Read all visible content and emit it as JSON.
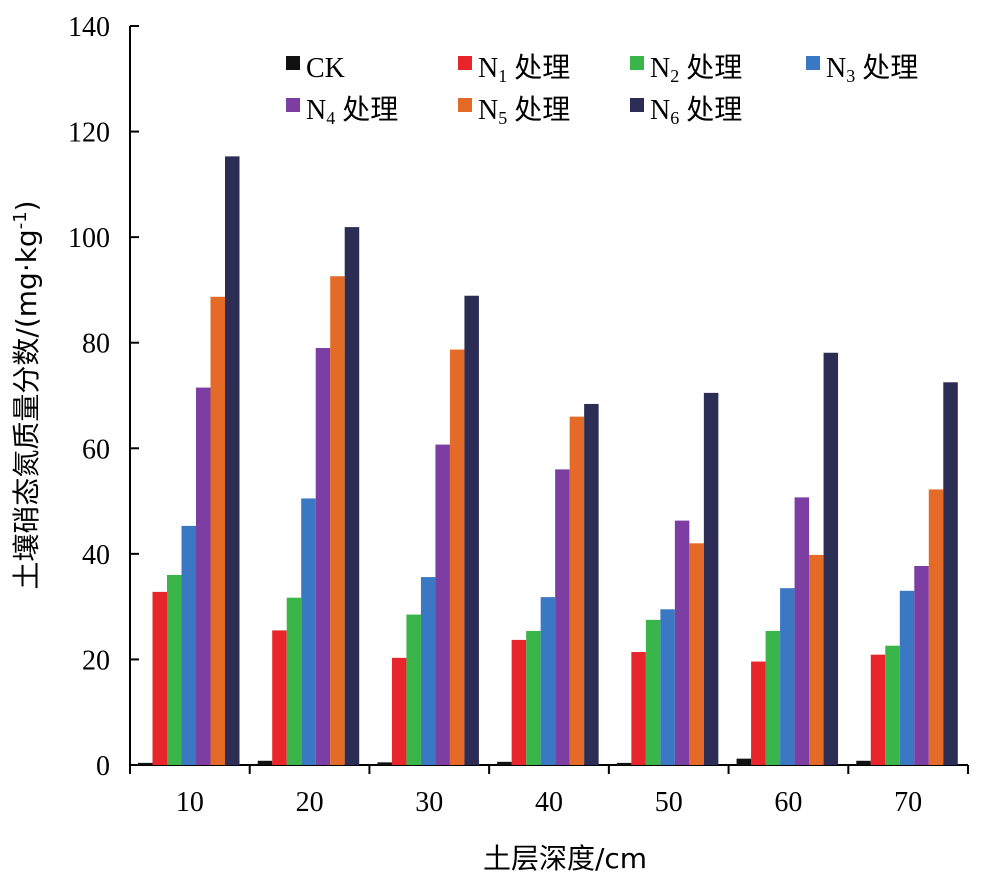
{
  "chart_data": {
    "type": "bar",
    "categories": [
      "10",
      "20",
      "30",
      "40",
      "50",
      "60",
      "70"
    ],
    "series": [
      {
        "name": "CK",
        "name_main": "CK",
        "name_sub": "",
        "name_suffix": "",
        "color": "#111111",
        "values": [
          0.4,
          0.8,
          0.5,
          0.6,
          0.4,
          1.2,
          0.8
        ]
      },
      {
        "name": "N1 处理",
        "name_main": "N",
        "name_sub": "1",
        "name_suffix": " 处理",
        "color": "#e8252a",
        "values": [
          32.8,
          25.5,
          20.3,
          23.7,
          21.4,
          19.6,
          20.9
        ]
      },
      {
        "name": "N2 处理",
        "name_main": "N",
        "name_sub": "2",
        "name_suffix": " 处理",
        "color": "#3ab54a",
        "values": [
          36.0,
          31.7,
          28.5,
          25.4,
          27.5,
          25.4,
          22.6
        ]
      },
      {
        "name": "N3 处理",
        "name_main": "N",
        "name_sub": "3",
        "name_suffix": " 处理",
        "color": "#3b78c3",
        "values": [
          45.3,
          50.5,
          35.6,
          31.8,
          29.5,
          33.5,
          33.0
        ]
      },
      {
        "name": "N4 处理",
        "name_main": "N",
        "name_sub": "4",
        "name_suffix": " 处理",
        "color": "#7c3ea3",
        "values": [
          71.5,
          79.0,
          60.7,
          56.0,
          46.3,
          50.7,
          37.7
        ]
      },
      {
        "name": "N5 处理",
        "name_main": "N",
        "name_sub": "5",
        "name_suffix": " 处理",
        "color": "#e46a27",
        "values": [
          88.7,
          92.6,
          78.7,
          66.0,
          42.0,
          39.8,
          52.2
        ]
      },
      {
        "name": "N6 处理",
        "name_main": "N",
        "name_sub": "6",
        "name_suffix": " 处理",
        "color": "#2b2d55",
        "values": [
          115.3,
          101.9,
          88.9,
          68.4,
          70.5,
          78.1,
          72.5
        ]
      }
    ],
    "ylim": [
      0,
      140
    ],
    "yticks": [
      0,
      20,
      40,
      60,
      80,
      100,
      120,
      140
    ],
    "xlabel": "土层深度/cm",
    "ylabel": "土壤硝态氮质量分数/(mg·kg",
    "ylabel_sup": "-1",
    "ylabel_end": ")",
    "grid": false,
    "legend_position": "top"
  }
}
